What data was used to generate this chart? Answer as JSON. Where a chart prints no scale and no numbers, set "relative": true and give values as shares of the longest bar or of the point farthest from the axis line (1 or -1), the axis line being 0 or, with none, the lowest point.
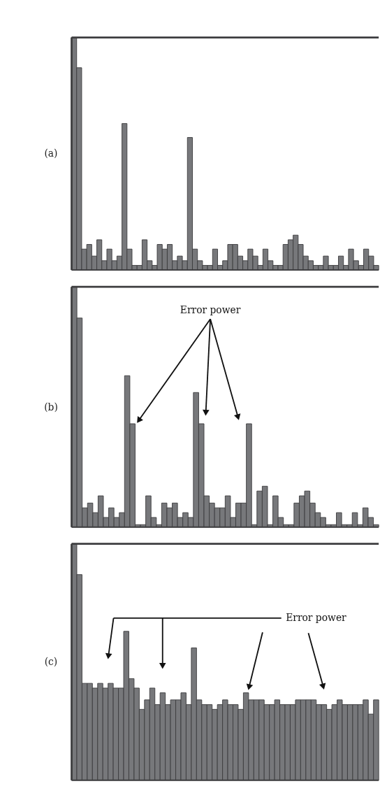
{
  "chart_data": [
    {
      "type": "bar",
      "title": "(a)",
      "relative": true,
      "color": "#77787b",
      "categories": [
        null,
        null,
        null,
        null,
        null,
        null,
        null,
        null,
        null,
        null,
        null,
        null,
        null,
        null,
        null,
        null,
        null,
        null,
        null,
        null,
        null,
        null,
        null,
        null,
        null,
        null,
        null,
        null,
        null,
        null,
        null,
        null,
        null,
        null,
        null,
        null,
        null,
        null,
        null,
        null,
        null,
        null,
        null,
        null,
        null,
        null,
        null,
        null,
        null,
        null,
        null,
        null,
        null,
        null,
        null,
        null,
        null,
        null,
        null,
        null,
        null
      ],
      "values": [
        1.0,
        0.87,
        0.09,
        0.11,
        0.06,
        0.13,
        0.04,
        0.09,
        0.04,
        0.06,
        0.63,
        0.09,
        0.02,
        0.02,
        0.13,
        0.04,
        0.02,
        0.11,
        0.09,
        0.11,
        0.04,
        0.06,
        0.04,
        0.57,
        0.09,
        0.04,
        0.02,
        0.02,
        0.09,
        0.02,
        0.04,
        0.11,
        0.11,
        0.06,
        0.04,
        0.09,
        0.06,
        0.02,
        0.09,
        0.04,
        0.02,
        0.02,
        0.11,
        0.13,
        0.15,
        0.11,
        0.06,
        0.04,
        0.02,
        0.02,
        0.06,
        0.02,
        0.02,
        0.06,
        0.02,
        0.09,
        0.04,
        0.02,
        0.09,
        0.06,
        0.02
      ]
    },
    {
      "type": "bar",
      "title": "(b)",
      "relative": true,
      "color": "#77787b",
      "annotations": [
        "Error power"
      ],
      "categories": [
        null,
        null,
        null,
        null,
        null,
        null,
        null,
        null,
        null,
        null,
        null,
        null,
        null,
        null,
        null,
        null,
        null,
        null,
        null,
        null,
        null,
        null,
        null,
        null,
        null,
        null,
        null,
        null,
        null,
        null,
        null,
        null,
        null,
        null,
        null,
        null,
        null,
        null,
        null,
        null,
        null,
        null,
        null,
        null,
        null,
        null,
        null,
        null,
        null,
        null,
        null,
        null,
        null,
        null,
        null,
        null,
        null,
        null
      ],
      "values": [
        1.0,
        0.87,
        0.08,
        0.1,
        0.06,
        0.13,
        0.04,
        0.08,
        0.04,
        0.06,
        0.63,
        0.43,
        0.01,
        0.01,
        0.13,
        0.04,
        0.01,
        0.1,
        0.08,
        0.1,
        0.04,
        0.06,
        0.04,
        0.56,
        0.43,
        0.13,
        0.1,
        0.08,
        0.08,
        0.13,
        0.04,
        0.1,
        0.1,
        0.43,
        0.01,
        0.15,
        0.17,
        0.01,
        0.13,
        0.04,
        0.01,
        0.01,
        0.1,
        0.13,
        0.15,
        0.1,
        0.06,
        0.04,
        0.01,
        0.01,
        0.06,
        0.01,
        0.01,
        0.06,
        0.01,
        0.08,
        0.04,
        0.01
      ]
    },
    {
      "type": "bar",
      "title": "(c)",
      "relative": true,
      "color": "#77787b",
      "annotations": [
        "Error power"
      ],
      "categories": [
        null,
        null,
        null,
        null,
        null,
        null,
        null,
        null,
        null,
        null,
        null,
        null,
        null,
        null,
        null,
        null,
        null,
        null,
        null,
        null,
        null,
        null,
        null,
        null,
        null,
        null,
        null,
        null,
        null,
        null,
        null,
        null,
        null,
        null,
        null,
        null,
        null,
        null,
        null,
        null,
        null,
        null,
        null,
        null,
        null,
        null,
        null,
        null,
        null,
        null,
        null,
        null,
        null,
        null,
        null,
        null,
        null,
        null,
        null
      ],
      "values": [
        1.0,
        0.87,
        0.41,
        0.41,
        0.39,
        0.41,
        0.39,
        0.41,
        0.39,
        0.39,
        0.63,
        0.43,
        0.39,
        0.3,
        0.34,
        0.39,
        0.32,
        0.37,
        0.32,
        0.34,
        0.34,
        0.37,
        0.32,
        0.56,
        0.34,
        0.32,
        0.32,
        0.3,
        0.32,
        0.34,
        0.32,
        0.32,
        0.3,
        0.37,
        0.34,
        0.34,
        0.34,
        0.32,
        0.32,
        0.34,
        0.32,
        0.32,
        0.32,
        0.34,
        0.34,
        0.34,
        0.34,
        0.32,
        0.32,
        0.3,
        0.32,
        0.34,
        0.32,
        0.32,
        0.32,
        0.32,
        0.34,
        0.28,
        0.34
      ]
    }
  ]
}
